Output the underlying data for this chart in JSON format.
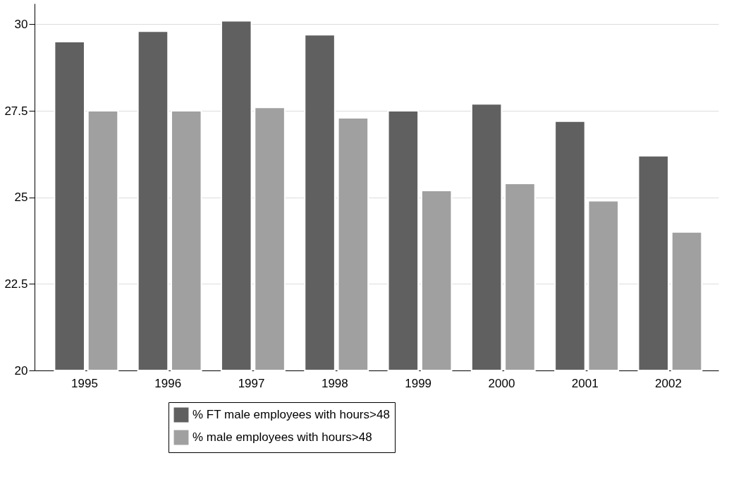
{
  "chart_data": {
    "type": "bar",
    "categories": [
      "1995",
      "1996",
      "1997",
      "1998",
      "1999",
      "2000",
      "2001",
      "2002"
    ],
    "series": [
      {
        "name": "% FT male employees with hours>48",
        "color": "#606060",
        "values": [
          29.5,
          29.8,
          30.1,
          29.7,
          27.5,
          27.7,
          27.2,
          26.2
        ]
      },
      {
        "name": "% male employees with hours>48",
        "color": "#a0a0a0",
        "values": [
          27.5,
          27.5,
          27.6,
          27.3,
          25.2,
          25.4,
          24.9,
          24.0
        ]
      }
    ],
    "ylim": [
      20,
      30.6
    ],
    "yticks": [
      20,
      22.5,
      25,
      27.5,
      30
    ],
    "grid": "y",
    "legend": "bottom"
  }
}
